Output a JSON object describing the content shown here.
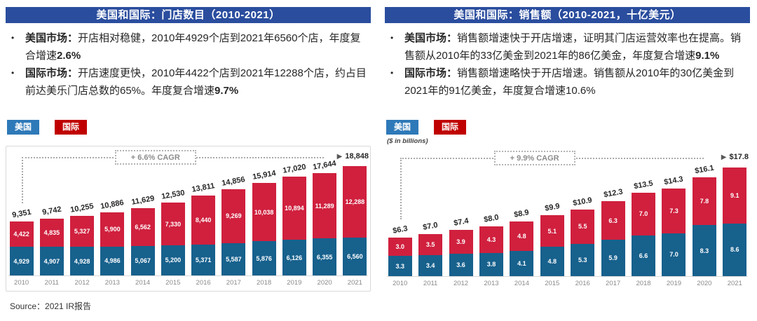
{
  "colors": {
    "header_bg": "#2A4D9E",
    "legend_us": "#2E79B8",
    "legend_intl": "#C00000",
    "bar_us": "#17618D",
    "bar_intl": "#D0203E"
  },
  "source": "Source：2021 IR报告",
  "panels": [
    {
      "header": "美国和国际：门店数目（2010-2021）",
      "bullets": [
        {
          "lead": "美国市场：",
          "body": "开店相对稳健，2010年4929个店到2021年6560个店，年度复合增速",
          "bold_tail": "2.6%"
        },
        {
          "lead": "国际市场：",
          "body": "开店速度更快，2010年4422个店到2021年12288个店，约占目前达美乐门店总数的65%。年度复合增速",
          "bold_tail": "9.7%"
        }
      ],
      "legend": [
        {
          "label": "美国",
          "color": "#2E79B8"
        },
        {
          "label": "国际",
          "color": "#C00000"
        }
      ]
    },
    {
      "header": "美国和国际：销售额（2010-2021，十亿美元）",
      "bullets": [
        {
          "lead": "美国市场：",
          "body": "销售额增速快于开店增速，证明其门店运营效率也在提高。销售额从2010年的33亿美金到2021年的86亿美金，年度复合增速",
          "bold_tail": "9.1%"
        },
        {
          "lead": "国际市场：",
          "body": "销售额增速略快于开店增速。销售额从2010年的30亿美金到2021年的91亿美金，年度复合增速10.6%",
          "bold_tail": ""
        }
      ],
      "legend": [
        {
          "label": "美国",
          "color": "#2E79B8"
        },
        {
          "label": "国际",
          "color": "#C00000"
        }
      ],
      "unit_note": "($ in billions)"
    }
  ],
  "chart_data": [
    {
      "type": "bar",
      "stacked": true,
      "title": "美国和国际：门店数目（2010-2021）",
      "categories": [
        "2010",
        "2011",
        "2012",
        "2013",
        "2014",
        "2015",
        "2016",
        "2017",
        "2018",
        "2019",
        "2020",
        "2021"
      ],
      "series": [
        {
          "name": "美国",
          "color": "#17618D",
          "labels": [
            "4,929",
            "4,907",
            "4,928",
            "4,986",
            "5,067",
            "5,200",
            "5,371",
            "5,587",
            "5,876",
            "6,126",
            "6,355",
            "6,560"
          ],
          "values": [
            4929,
            4907,
            4928,
            4986,
            5067,
            5200,
            5371,
            5587,
            5876,
            6126,
            6355,
            6560
          ]
        },
        {
          "name": "国际",
          "color": "#D0203E",
          "labels": [
            "4,422",
            "4,835",
            "5,327",
            "5,900",
            "6,562",
            "7,330",
            "8,440",
            "9,269",
            "10,038",
            "10,894",
            "11,289",
            "12,288"
          ],
          "values": [
            4422,
            4835,
            5327,
            5900,
            6562,
            7330,
            8440,
            9269,
            10038,
            10894,
            11289,
            12288
          ]
        }
      ],
      "totals": [
        "9,351",
        "9,742",
        "10,255",
        "10,886",
        "11,629",
        "12,530",
        "13,811",
        "14,856",
        "15,914",
        "17,020",
        "17,644",
        "18,848"
      ],
      "cagr_label": "+ 6.6% CAGR",
      "legend_position": "top-left",
      "grid": false,
      "boxed": true,
      "ylim": [
        0,
        18848
      ]
    },
    {
      "type": "bar",
      "stacked": true,
      "title": "美国和国际：销售额（2010-2021，十亿美元）",
      "unit_note": "($ in billions)",
      "categories": [
        "2010",
        "2011",
        "2012",
        "2013",
        "2014",
        "2015",
        "2016",
        "2017",
        "2018",
        "2019",
        "2020",
        "2021"
      ],
      "series": [
        {
          "name": "美国",
          "color": "#17618D",
          "labels": [
            "3.3",
            "3.4",
            "3.6",
            "3.8",
            "4.1",
            "4.8",
            "5.3",
            "5.9",
            "6.6",
            "7.0",
            "8.3",
            "8.6"
          ],
          "values": [
            3.3,
            3.4,
            3.6,
            3.8,
            4.1,
            4.8,
            5.3,
            5.9,
            6.6,
            7.0,
            8.3,
            8.6
          ]
        },
        {
          "name": "国际",
          "color": "#D0203E",
          "labels": [
            "3.0",
            "3.5",
            "3.9",
            "4.3",
            "4.8",
            "5.1",
            "5.5",
            "6.3",
            "7.0",
            "7.3",
            "7.8",
            "9.1"
          ],
          "values": [
            3.0,
            3.5,
            3.9,
            4.3,
            4.8,
            5.1,
            5.5,
            6.3,
            7.0,
            7.3,
            7.8,
            9.1
          ]
        }
      ],
      "totals": [
        "$6.3",
        "$7.0",
        "$7.4",
        "$8.0",
        "$8.9",
        "$9.9",
        "$10.9",
        "$12.3",
        "$13.5",
        "$14.3",
        "$16.1",
        "$17.8"
      ],
      "cagr_label": "+ 9.9% CAGR",
      "legend_position": "top-left",
      "grid": false,
      "boxed": false,
      "ylim": [
        0,
        17.8
      ]
    }
  ]
}
